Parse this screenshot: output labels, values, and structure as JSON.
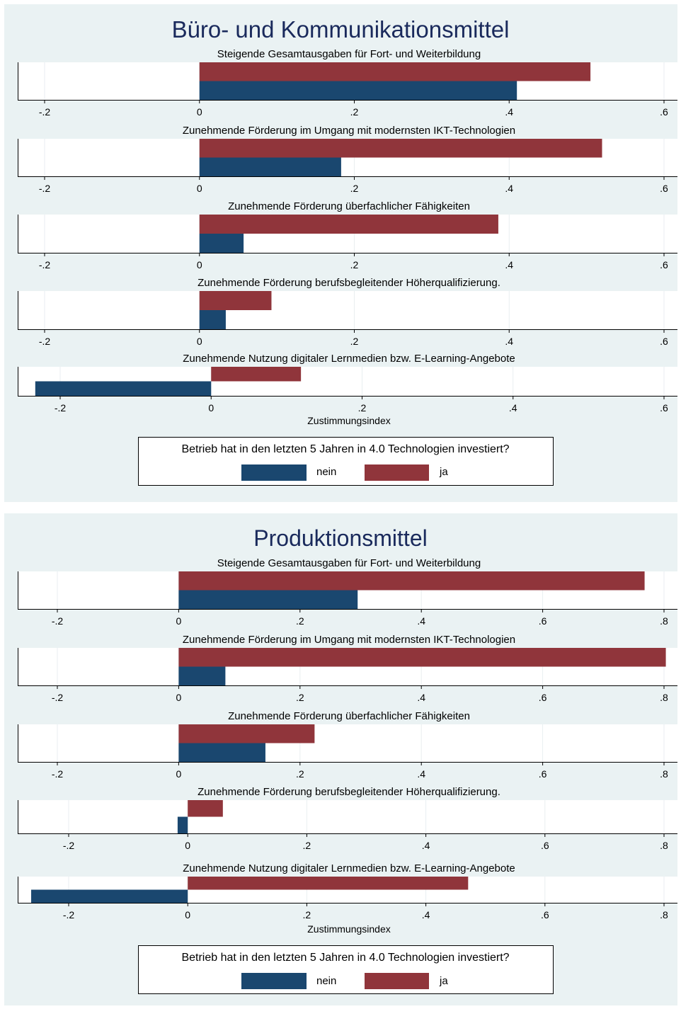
{
  "colors": {
    "nein": "#1a476f",
    "ja": "#90353b",
    "title": "#1a2a5c",
    "background": "#eaf2f3"
  },
  "chart_data": [
    {
      "type": "bar",
      "orientation": "horizontal",
      "title": "Büro- und Kommunikationsmittel",
      "xlabel": "Zustimmungsindex",
      "legend": {
        "title": "Betrieb hat in den letzten 5 Jahren in 4.0 Technologien investiert?",
        "position": "bottom",
        "labels": [
          "nein",
          "ja"
        ]
      },
      "series": [
        {
          "name": "nein"
        },
        {
          "name": "ja"
        }
      ],
      "subplots": [
        {
          "title": "Steigende Gesamtausgaben für Fort- und Weiterbildung",
          "xlim": [
            -0.2,
            0.6
          ],
          "ticks": [
            -0.2,
            0,
            0.2,
            0.4,
            0.6
          ],
          "tick_labels": [
            "-.2",
            "0",
            ".2",
            ".4",
            ".6"
          ],
          "values": {
            "nein": 0.41,
            "ja": 0.505
          }
        },
        {
          "title": "Zunehmende Förderung im Umgang mit modernsten IKT-Technologien",
          "xlim": [
            -0.2,
            0.6
          ],
          "ticks": [
            -0.2,
            0,
            0.2,
            0.4,
            0.6
          ],
          "tick_labels": [
            "-.2",
            "0",
            ".2",
            ".4",
            ".6"
          ],
          "values": {
            "nein": 0.183,
            "ja": 0.52
          }
        },
        {
          "title": "Zunehmende Förderung überfachlicher Fähigkeiten",
          "xlim": [
            -0.2,
            0.6
          ],
          "ticks": [
            -0.2,
            0,
            0.2,
            0.4,
            0.6
          ],
          "tick_labels": [
            "-.2",
            "0",
            ".2",
            ".4",
            ".6"
          ],
          "values": {
            "nein": 0.057,
            "ja": 0.386
          }
        },
        {
          "title": "Zunehmende Förderung berufsbegleitender Höherqualifizierung.",
          "xlim": [
            -0.2,
            0.6
          ],
          "ticks": [
            -0.2,
            0,
            0.2,
            0.4,
            0.6
          ],
          "tick_labels": [
            "-.2",
            "0",
            ".2",
            ".4",
            ".6"
          ],
          "values": {
            "nein": 0.034,
            "ja": 0.093
          }
        },
        {
          "title": "Zunehmende Nutzung digitaler Lernmedien bzw. E-Learning-Angebote",
          "xlim": [
            -0.2,
            0.6
          ],
          "ticks": [
            -0.2,
            0,
            0.2,
            0.4,
            0.6
          ],
          "tick_labels": [
            "-.2",
            "0",
            ".2",
            ".4",
            ".6"
          ],
          "values": {
            "nein": -0.233,
            "ja": 0.119
          }
        }
      ]
    },
    {
      "type": "bar",
      "orientation": "horizontal",
      "title": "Produktionsmittel",
      "xlabel": "Zustimmungsindex",
      "legend": {
        "title": "Betrieb hat in den letzten 5 Jahren in 4.0 Technologien investiert?",
        "position": "bottom",
        "labels": [
          "nein",
          "ja"
        ]
      },
      "series": [
        {
          "name": "nein"
        },
        {
          "name": "ja"
        }
      ],
      "subplots": [
        {
          "title": "Steigende Gesamtausgaben für Fort- und Weiterbildung",
          "xlim": [
            -0.2,
            0.8
          ],
          "ticks": [
            -0.2,
            0,
            0.2,
            0.4,
            0.6,
            0.8
          ],
          "tick_labels": [
            "-.2",
            "0",
            ".2",
            ".4",
            ".6",
            ".8"
          ],
          "values": {
            "nein": 0.295,
            "ja": 0.768
          }
        },
        {
          "title": "Zunehmende Förderung im Umgang mit modernsten IKT-Technologien",
          "xlim": [
            -0.2,
            0.8
          ],
          "ticks": [
            -0.2,
            0,
            0.2,
            0.4,
            0.6,
            0.8
          ],
          "tick_labels": [
            "-.2",
            "0",
            ".2",
            ".4",
            ".6",
            ".8"
          ],
          "values": {
            "nein": 0.077,
            "ja": 0.803
          }
        },
        {
          "title": "Zunehmende Förderung überfachlicher Fähigkeiten",
          "xlim": [
            -0.2,
            0.8
          ],
          "ticks": [
            -0.2,
            0,
            0.2,
            0.4,
            0.6,
            0.8
          ],
          "tick_labels": [
            "-.2",
            "0",
            ".2",
            ".4",
            ".6",
            ".8"
          ],
          "values": {
            "nein": 0.143,
            "ja": 0.224
          }
        },
        {
          "title": "Zunehmende Förderung berufsbegleitender Höherqualifizierung.",
          "xlim": [
            -0.2,
            0.8
          ],
          "ticks": [
            -0.2,
            0,
            0.2,
            0.4,
            0.6,
            0.8
          ],
          "tick_labels": [
            "-.2",
            "0",
            ".2",
            ".4",
            ".6",
            ".8"
          ],
          "values": {
            "nein": -0.017,
            "ja": 0.059
          }
        },
        {
          "title": "Zunehmende Nutzung digitaler Lernmedien bzw. E-Learning-Angebote",
          "xlim": [
            -0.2,
            0.8
          ],
          "ticks": [
            -0.2,
            0,
            0.2,
            0.4,
            0.6,
            0.8
          ],
          "tick_labels": [
            "-.2",
            "0",
            ".2",
            ".4",
            ".6",
            ".8"
          ],
          "values": {
            "nein": -0.263,
            "ja": 0.471
          }
        }
      ]
    }
  ]
}
